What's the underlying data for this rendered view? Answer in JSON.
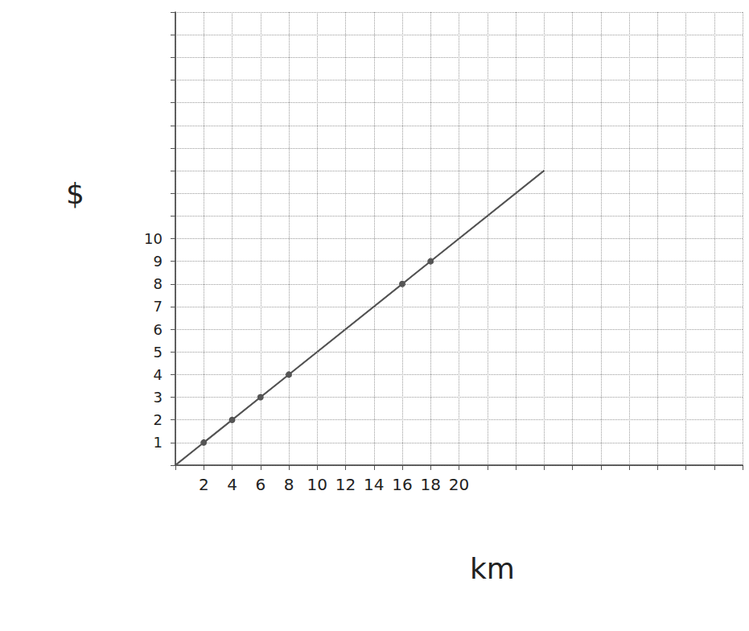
{
  "chart_data": {
    "type": "line",
    "x_label": "km",
    "y_label": "$",
    "x": [
      0,
      2,
      4,
      6,
      8,
      16,
      18,
      26
    ],
    "values": [
      0,
      1,
      2,
      3,
      4,
      8,
      9,
      13
    ],
    "color": "#555555",
    "marker": "circle",
    "xlim": [
      0,
      40
    ],
    "ylim": [
      0,
      20
    ],
    "xticks": [
      2,
      4,
      6,
      8,
      10,
      12,
      14,
      16,
      18,
      20
    ],
    "yticks": [
      1,
      2,
      3,
      4,
      5,
      6,
      7,
      8,
      9,
      10
    ],
    "grid": true
  }
}
